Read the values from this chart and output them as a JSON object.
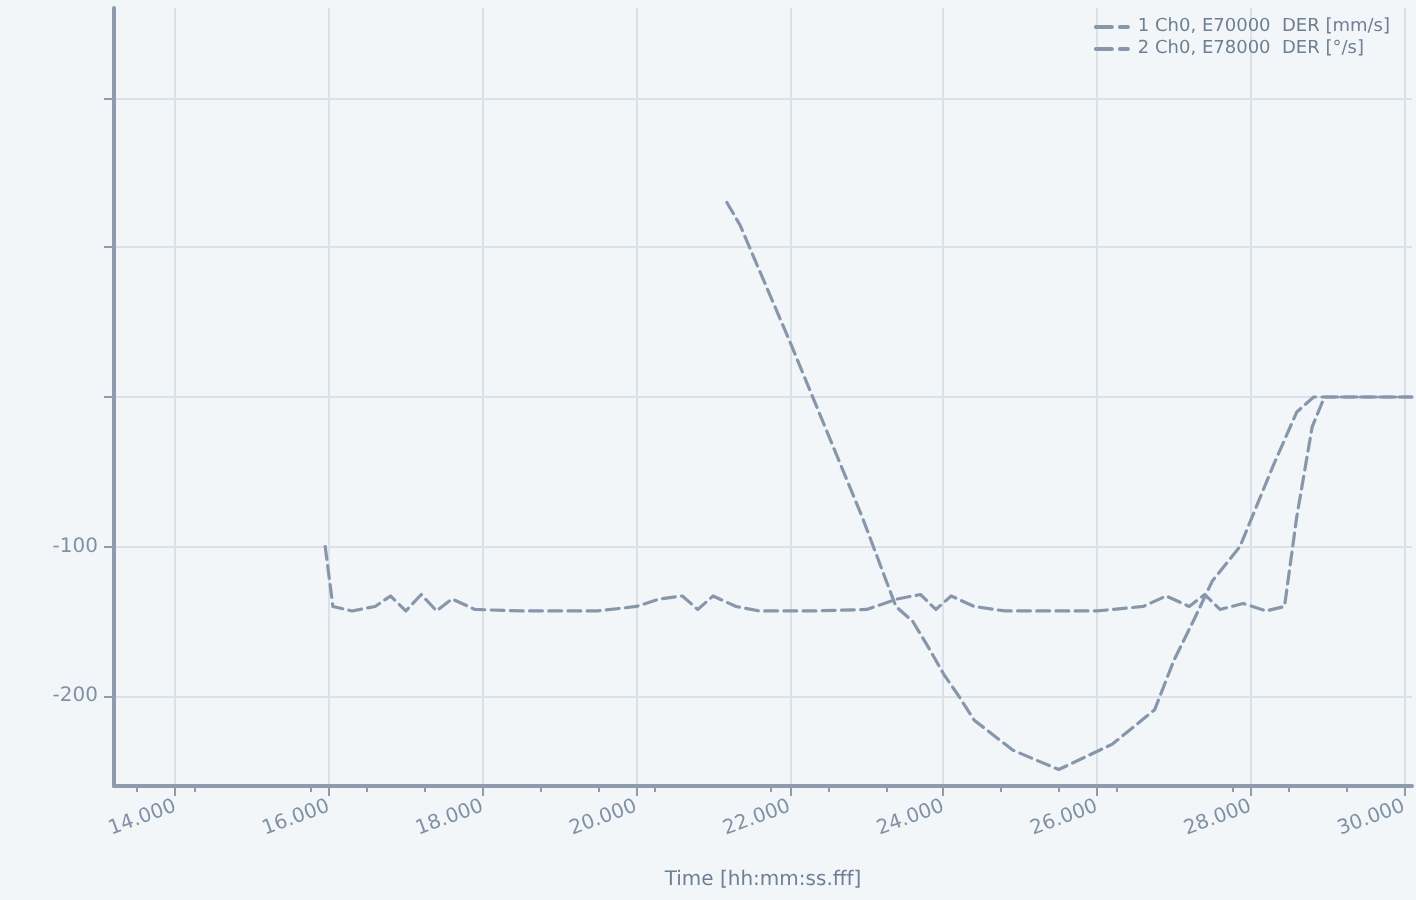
{
  "chart_data": {
    "type": "line",
    "xlabel": "Time [hh:mm:ss.fff]",
    "xlim": [
      13200,
      30100
    ],
    "xticks": [
      {
        "value": 14000,
        "label": "14.000"
      },
      {
        "value": 16000,
        "label": "16.000"
      },
      {
        "value": 18000,
        "label": "18.000"
      },
      {
        "value": 20000,
        "label": "20.000"
      },
      {
        "value": 22000,
        "label": "22.000"
      },
      {
        "value": 24000,
        "label": "24.000"
      },
      {
        "value": 26000,
        "label": "26.000"
      },
      {
        "value": 28000,
        "label": "28.000"
      },
      {
        "value": 30000,
        "label": "30.000"
      }
    ],
    "ylim": [
      -260,
      260
    ],
    "yticks": [
      -200,
      -100,
      {
        "value": 0,
        "label": null
      },
      {
        "value": 100,
        "label": null
      },
      {
        "value": 200,
        "label": null
      }
    ],
    "grid": true,
    "legend": "top right",
    "marker": "none",
    "line_style": "dashed",
    "series": [
      {
        "name": "1 Ch0, E70000  DER [mm/s]",
        "color": "#8797ab",
        "x": [
          15950,
          16050,
          16300,
          16600,
          16800,
          17000,
          17200,
          17400,
          17600,
          17900,
          18500,
          19500,
          20000,
          20300,
          20600,
          20800,
          21000,
          21300,
          21600,
          22300,
          23000,
          23400,
          23700,
          23900,
          24100,
          24400,
          24800,
          26000,
          26600,
          26900,
          27200,
          27400,
          27600,
          27900,
          28200,
          28440,
          28600,
          28800,
          28960,
          30100
        ],
        "values": [
          -100,
          -140,
          -143,
          -140,
          -133,
          -143,
          -132,
          -143,
          -135,
          -142,
          -143,
          -143,
          -140,
          -135,
          -133,
          -142,
          -133,
          -140,
          -143,
          -143,
          -142,
          -135,
          -132,
          -142,
          -133,
          -140,
          -143,
          -143,
          -140,
          -133,
          -140,
          -132,
          -142,
          -138,
          -143,
          -140,
          -80,
          -20,
          0,
          0
        ]
      },
      {
        "name": "2 Ch0, E78000  DER [°/s]",
        "color": "#8797ab",
        "x": [
          21180,
          21350,
          22000,
          22940,
          23380,
          23600,
          23800,
          24000,
          24200,
          24400,
          24900,
          25500,
          26200,
          26750,
          27000,
          27260,
          27500,
          27860,
          28300,
          28600,
          28820,
          30100
        ],
        "values": [
          130,
          115,
          37,
          -80,
          -140,
          -150,
          -167,
          -185,
          -200,
          -216,
          -236,
          -249,
          -232,
          -209,
          -176,
          -149,
          -123,
          -100,
          -45,
          -10,
          0,
          0
        ]
      }
    ]
  }
}
